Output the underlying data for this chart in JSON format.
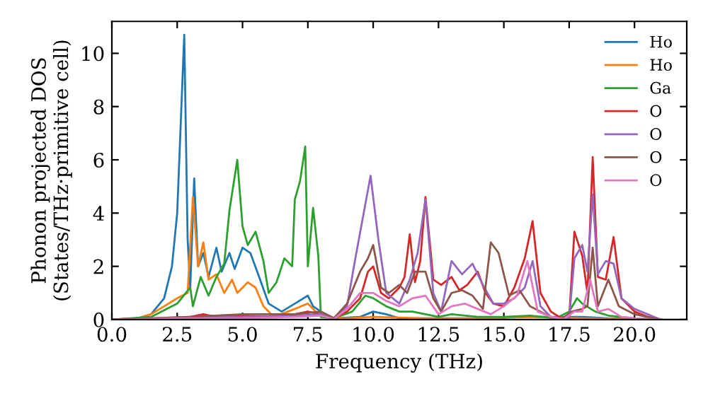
{
  "chart_data": {
    "type": "line",
    "xlabel": "Frequency (THz)",
    "ylabel": "Phonon projected DOS\n(States/THz·primitive cell)",
    "xlim": [
      0,
      22
    ],
    "ylim": [
      0,
      11.2
    ],
    "xticks": [
      {
        "value": 0,
        "label": "0.0"
      },
      {
        "value": 2.5,
        "label": "2.5"
      },
      {
        "value": 5,
        "label": "5.0"
      },
      {
        "value": 7.5,
        "label": "7.5"
      },
      {
        "value": 10,
        "label": "10.0"
      },
      {
        "value": 12.5,
        "label": "12.5"
      },
      {
        "value": 15,
        "label": "15.0"
      },
      {
        "value": 17.5,
        "label": "17.5"
      },
      {
        "value": 20,
        "label": "20.0"
      }
    ],
    "yticks": [
      0,
      2,
      4,
      6,
      8,
      10
    ],
    "grid": false,
    "legend": "top right",
    "marker": "none",
    "line_style": "solid",
    "series": [
      {
        "name": "Ho",
        "color": "#1f77b4",
        "x": [
          0,
          1,
          1.5,
          2,
          2.3,
          2.5,
          2.77,
          2.9,
          3.0,
          3.15,
          3.3,
          3.5,
          3.7,
          4.0,
          4.2,
          4.5,
          4.7,
          5.0,
          5.3,
          5.6,
          6.0,
          6.5,
          7.0,
          7.5,
          7.7,
          8.0,
          8.5,
          9.5,
          10,
          10.5,
          11,
          12,
          14,
          16,
          18,
          19,
          20,
          21
        ],
        "values": [
          0,
          0.05,
          0.2,
          0.8,
          2.0,
          4.0,
          10.7,
          3.0,
          1.2,
          5.3,
          2.0,
          2.5,
          1.6,
          2.7,
          1.8,
          2.5,
          1.9,
          2.7,
          2.5,
          1.7,
          0.6,
          0.3,
          0.6,
          0.9,
          0.5,
          0.3,
          0.05,
          0.1,
          0.3,
          0.2,
          0.05,
          0.05,
          0.05,
          0.1,
          0.1,
          0.05,
          0.02,
          0
        ]
      },
      {
        "name": "Ho",
        "color": "#ff7f0e",
        "x": [
          0,
          1,
          1.5,
          2,
          2.5,
          2.9,
          3.1,
          3.3,
          3.5,
          3.7,
          4.0,
          4.3,
          4.6,
          4.8,
          5.2,
          5.5,
          5.8,
          6.2,
          7,
          7.5,
          8,
          9,
          10,
          12,
          14,
          16,
          18,
          20,
          21
        ],
        "values": [
          0,
          0.05,
          0.2,
          0.5,
          0.8,
          1.0,
          4.6,
          2.0,
          2.9,
          1.5,
          1.7,
          1.0,
          1.5,
          1.0,
          1.4,
          1.2,
          0.5,
          0.1,
          0.4,
          0.6,
          0.1,
          0.05,
          0.1,
          0.05,
          0.05,
          0.1,
          0.05,
          0.02,
          0
        ]
      },
      {
        "name": "Ga",
        "color": "#2ca02c",
        "x": [
          0,
          1.5,
          2.5,
          3.0,
          3.1,
          3.4,
          3.7,
          4.0,
          4.3,
          4.5,
          4.8,
          5.0,
          5.2,
          5.5,
          5.8,
          6.0,
          6.3,
          6.6,
          6.9,
          7.0,
          7.2,
          7.4,
          7.5,
          7.7,
          7.9,
          8.0,
          8.5,
          9.2,
          9.7,
          10.0,
          10.5,
          11,
          11.5,
          12,
          12.5,
          13,
          14,
          15,
          16,
          17,
          17.5,
          17.8,
          18.0,
          18.5,
          19,
          20,
          21
        ],
        "values": [
          0,
          0.1,
          0.6,
          1.2,
          0.5,
          1.6,
          0.9,
          1.6,
          2.1,
          4.1,
          6.0,
          3.5,
          2.8,
          3.3,
          2.2,
          1.0,
          1.4,
          2.3,
          2.0,
          4.5,
          5.2,
          6.5,
          2.0,
          4.2,
          2.4,
          0.1,
          0.05,
          0.3,
          0.9,
          0.8,
          0.5,
          0.3,
          0.3,
          0.2,
          0.1,
          0.2,
          0.1,
          0.1,
          0.15,
          0.05,
          0.3,
          0.8,
          0.6,
          0.3,
          0.15,
          0.05,
          0
        ]
      },
      {
        "name": "O",
        "color": "#d62728",
        "x": [
          0,
          2,
          3,
          3.5,
          4,
          5,
          6,
          7,
          7.5,
          8,
          8.5,
          9,
          9.5,
          9.8,
          10,
          10.3,
          10.6,
          11,
          11.2,
          11.4,
          11.6,
          11.8,
          12,
          12.3,
          12.6,
          13,
          13.3,
          13.6,
          14,
          14.3,
          14.6,
          15,
          15.4,
          15.8,
          16.1,
          16.4,
          16.8,
          17.2,
          17.5,
          17.7,
          18,
          18.2,
          18.4,
          18.6,
          18.9,
          19.2,
          19.5,
          20,
          20.5,
          21
        ],
        "values": [
          0,
          0.05,
          0.1,
          0.2,
          0.1,
          0.15,
          0.1,
          0.2,
          0.3,
          0.2,
          0.05,
          0.3,
          0.8,
          1.8,
          2.0,
          1.0,
          0.8,
          1.2,
          1.6,
          3.2,
          1.4,
          2.2,
          4.6,
          1.5,
          1.3,
          1.6,
          1.1,
          1.3,
          1.8,
          1.0,
          0.6,
          0.5,
          1.2,
          2.3,
          3.7,
          1.0,
          0.3,
          0.05,
          0.05,
          3.3,
          2.4,
          1.0,
          6.1,
          1.6,
          1.5,
          3.1,
          0.8,
          0.3,
          0.1,
          0
        ]
      },
      {
        "name": "O",
        "color": "#9467bd",
        "x": [
          0,
          3,
          5,
          7,
          8,
          8.5,
          9,
          9.3,
          9.6,
          9.9,
          10.2,
          10.5,
          11,
          11.4,
          11.7,
          12,
          12.3,
          12.6,
          13,
          13.4,
          13.8,
          14.2,
          14.6,
          15,
          15.4,
          15.8,
          16.1,
          16.4,
          16.8,
          17.2,
          17.5,
          17.7,
          18,
          18.2,
          18.4,
          18.6,
          18.9,
          19.2,
          19.5,
          20,
          20.5,
          21
        ],
        "values": [
          0,
          0.1,
          0.1,
          0.15,
          0.2,
          0.05,
          0.5,
          2.2,
          3.8,
          5.4,
          3.0,
          1.0,
          0.6,
          1.5,
          2.5,
          4.5,
          1.0,
          0.3,
          2.2,
          1.7,
          2.1,
          1.3,
          0.6,
          0.6,
          0.8,
          1.2,
          2.2,
          0.5,
          0.1,
          0.02,
          0.05,
          2.3,
          2.8,
          1.8,
          4.7,
          1.7,
          2.2,
          2.1,
          0.8,
          0.4,
          0.2,
          0
        ]
      },
      {
        "name": "O",
        "color": "#8c564b",
        "x": [
          0,
          3,
          5,
          7,
          8,
          8.5,
          9,
          9.5,
          9.8,
          10,
          10.3,
          10.6,
          11,
          11.3,
          11.6,
          12,
          12.3,
          12.6,
          13,
          13.4,
          13.8,
          14.2,
          14.5,
          14.8,
          15.2,
          15.6,
          16,
          16.4,
          16.8,
          17.2,
          17.6,
          18,
          18.2,
          18.4,
          18.6,
          19,
          19.4,
          20,
          21
        ],
        "values": [
          0,
          0.1,
          0.2,
          0.2,
          0.3,
          0.05,
          0.6,
          1.8,
          2.3,
          2.8,
          1.2,
          1.0,
          1.3,
          1.0,
          1.8,
          1.8,
          0.8,
          0.3,
          1.0,
          1.1,
          0.9,
          0.4,
          2.9,
          2.5,
          0.9,
          1.1,
          0.5,
          0.3,
          0.1,
          0.02,
          0.3,
          0.4,
          0.5,
          2.7,
          0.5,
          1.5,
          0.5,
          0.2,
          0
        ]
      },
      {
        "name": "O",
        "color": "#e377c2",
        "x": [
          0,
          3,
          5,
          7,
          8,
          8.5,
          9,
          9.5,
          10,
          10.5,
          11,
          11.5,
          12,
          12.5,
          13,
          13.5,
          14,
          14.5,
          15,
          15.5,
          15.9,
          16.3,
          16.8,
          17.3,
          17.7,
          18,
          18.3,
          18.6,
          19,
          19.5,
          20,
          21
        ],
        "values": [
          0,
          0.05,
          0.05,
          0.1,
          0.15,
          0.02,
          0.4,
          1.0,
          1.0,
          0.7,
          0.5,
          0.8,
          0.9,
          0.2,
          0.5,
          0.6,
          0.4,
          0.2,
          0.5,
          0.9,
          2.2,
          0.3,
          0.1,
          0.02,
          0.3,
          0.3,
          1.5,
          0.3,
          0.4,
          0.1,
          0.05,
          0
        ]
      }
    ]
  }
}
